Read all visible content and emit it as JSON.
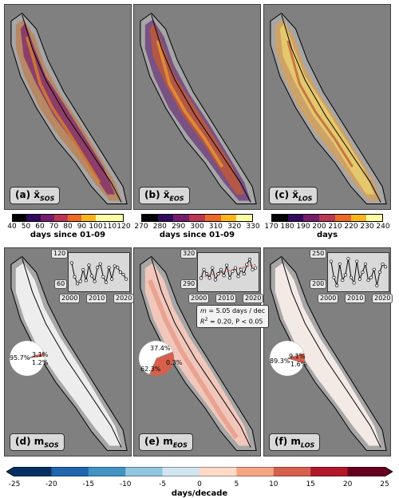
{
  "panels": {
    "a": {
      "letter": "(a)",
      "var": "x̃",
      "sub": "SOS"
    },
    "b": {
      "letter": "(b)",
      "var": "x̃",
      "sub": "EOS"
    },
    "c": {
      "letter": "(c)",
      "var": "x̃",
      "sub": "LOS"
    },
    "d": {
      "letter": "(d)",
      "var": "m",
      "sub": "SOS"
    },
    "e": {
      "letter": "(e)",
      "var": "m",
      "sub": "EOS"
    },
    "f": {
      "letter": "(f)",
      "var": "m",
      "sub": "LOS"
    }
  },
  "colorbars": {
    "a": {
      "ticks": [
        "40",
        "50",
        "60",
        "70",
        "80",
        "90",
        "100",
        "110",
        "120"
      ],
      "label": "days since 01-09",
      "colors": [
        "#000004",
        "#320a5e",
        "#781c6d",
        "#bc3754",
        "#ed6925",
        "#fbb61a",
        "#fcffa4",
        "#fcffa4"
      ]
    },
    "b": {
      "ticks": [
        "270",
        "280",
        "290",
        "300",
        "310",
        "320",
        "330"
      ],
      "label": "days since 01-09",
      "colors": [
        "#000004",
        "#320a5e",
        "#781c6d",
        "#bc3754",
        "#ed6925",
        "#fbb61a",
        "#fcffa4"
      ]
    },
    "c": {
      "ticks": [
        "170",
        "180",
        "190",
        "200",
        "210",
        "220",
        "230",
        "240"
      ],
      "label": "days",
      "colors": [
        "#000004",
        "#320a5e",
        "#781c6d",
        "#bc3754",
        "#ed6925",
        "#fbb61a",
        "#fcffa4"
      ]
    }
  },
  "timeseries": {
    "d": {
      "y_ticks": [
        "120",
        "60"
      ],
      "x_ticks": [
        "2000",
        "2010",
        "2020"
      ]
    },
    "e": {
      "y_ticks": [
        "320",
        "290"
      ],
      "x_ticks": [
        "2000",
        "2010",
        "2020"
      ]
    },
    "f": {
      "y_ticks": [
        "250",
        "200"
      ],
      "x_ticks": [
        "2000",
        "2010",
        "2020"
      ]
    }
  },
  "stats_e": {
    "line1": "= 5.05 days / dec",
    "m": "m",
    "line2": "= 0.20, P < 0.05",
    "r2": "R",
    "r2sup": "2"
  },
  "pies": {
    "d": {
      "labels": [
        "95.7%",
        "3.1%",
        "1.2%"
      ],
      "fractions": [
        0.957,
        0.031,
        0.012
      ],
      "colors": [
        "#ffffff",
        "#d6604d",
        "#ffffff"
      ]
    },
    "e": {
      "labels": [
        "62.3%",
        "37.4%",
        "0.3%"
      ],
      "fractions": [
        0.623,
        0.374,
        0.003
      ],
      "colors": [
        "#ffffff",
        "#d6604d",
        "#ffffff"
      ]
    },
    "f": {
      "labels": [
        "89.3%",
        "9.1%",
        "1.6%"
      ],
      "fractions": [
        0.893,
        0.091,
        0.016
      ],
      "colors": [
        "#ffffff",
        "#d6604d",
        "#ffffff"
      ]
    }
  },
  "bottom_colorbar": {
    "ticks": [
      "-25",
      "-20",
      "-15",
      "-10",
      "-5",
      "0",
      "5",
      "10",
      "15",
      "20",
      "25"
    ],
    "label": "days/decade",
    "colors": [
      "#053061",
      "#2166ac",
      "#4393c3",
      "#92c5de",
      "#d1e5f0",
      "#fddbc7",
      "#f4a582",
      "#d6604d",
      "#b2182b",
      "#67001f"
    ]
  },
  "chart_data": [
    {
      "type": "line",
      "title": "",
      "x": [
        2001,
        2002,
        2003,
        2004,
        2005,
        2006,
        2007,
        2008,
        2009,
        2010,
        2011,
        2012,
        2013,
        2014,
        2015,
        2016,
        2017,
        2018,
        2019,
        2020
      ],
      "series": [
        {
          "values": [
            110,
            80,
            65,
            70,
            95,
            72,
            105,
            82,
            70,
            100,
            108,
            80,
            68,
            100,
            75,
            103,
            100,
            90,
            85,
            75
          ]
        }
      ],
      "ylim": [
        55,
        125
      ]
    },
    {
      "type": "line",
      "title": "",
      "x": [
        2001,
        2002,
        2003,
        2004,
        2005,
        2006,
        2007,
        2008,
        2009,
        2010,
        2011,
        2012,
        2013,
        2014,
        2015,
        2016,
        2017,
        2018,
        2019,
        2020
      ],
      "series": [
        {
          "values": [
            300,
            310,
            305,
            300,
            312,
            298,
            305,
            310,
            303,
            315,
            300,
            308,
            312,
            302,
            310,
            305,
            316,
            322,
            310,
            312
          ]
        }
      ],
      "ylim": [
        288,
        326
      ]
    },
    {
      "type": "line",
      "title": "",
      "x": [
        2001,
        2002,
        2003,
        2004,
        2005,
        2006,
        2007,
        2008,
        2009,
        2010,
        2011,
        2012,
        2013,
        2014,
        2015,
        2016,
        2017,
        2018,
        2019,
        2020
      ],
      "series": [
        {
          "values": [
            245,
            215,
            200,
            240,
            210,
            220,
            250,
            215,
            205,
            245,
            212,
            225,
            240,
            210,
            215,
            230,
            200,
            225,
            240,
            235
          ]
        }
      ],
      "ylim": [
        195,
        255
      ]
    }
  ]
}
